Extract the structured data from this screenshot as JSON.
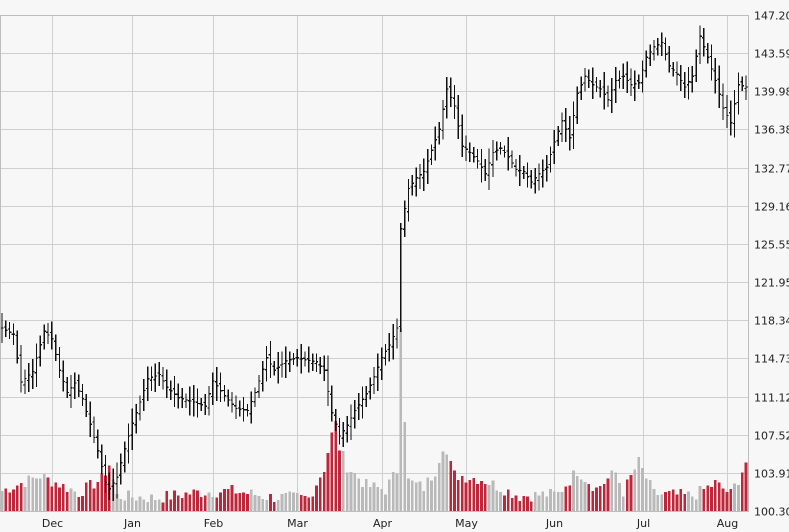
{
  "chart_data": {
    "type": "candlestick-with-volume",
    "title": "",
    "ylim": [
      100.3,
      147.2
    ],
    "y_ticks": [
      "147.20",
      "143.59",
      "139.98",
      "136.38",
      "132.77",
      "129.16",
      "125.55",
      "121.95",
      "118.34",
      "114.73",
      "111.12",
      "107.52",
      "103.91",
      "100.30"
    ],
    "x_ticks": [
      "Dec",
      "Jan",
      "Feb",
      "Mar",
      "Apr",
      "May",
      "Jun",
      "Jul",
      "Aug"
    ],
    "x_tick_index": [
      13,
      34,
      55,
      77,
      99,
      121,
      144,
      167,
      189
    ],
    "n_sessions": 195,
    "price_anchors": [
      [
        0,
        117.6
      ],
      [
        3,
        117.0
      ],
      [
        5,
        112.5
      ],
      [
        8,
        113.5
      ],
      [
        11,
        117.3
      ],
      [
        13,
        116.6
      ],
      [
        15,
        113.6
      ],
      [
        17,
        111.5
      ],
      [
        19,
        112.4
      ],
      [
        21,
        110.9
      ],
      [
        23,
        108.5
      ],
      [
        25,
        106.0
      ],
      [
        27,
        103.0
      ],
      [
        28,
        102.4
      ],
      [
        30,
        103.5
      ],
      [
        32,
        106.2
      ],
      [
        34,
        108.6
      ],
      [
        36,
        110.6
      ],
      [
        38,
        112.8
      ],
      [
        41,
        113.2
      ],
      [
        43,
        112.0
      ],
      [
        46,
        111.0
      ],
      [
        50,
        110.6
      ],
      [
        53,
        110.2
      ],
      [
        55,
        112.6
      ],
      [
        58,
        111.2
      ],
      [
        61,
        110.0
      ],
      [
        64,
        109.8
      ],
      [
        66,
        111.5
      ],
      [
        69,
        114.8
      ],
      [
        71,
        113.6
      ],
      [
        74,
        114.5
      ],
      [
        77,
        114.8
      ],
      [
        79,
        114.6
      ],
      [
        82,
        114.4
      ],
      [
        84,
        113.6
      ],
      [
        86,
        109.6
      ],
      [
        88,
        107.4
      ],
      [
        90,
        108.4
      ],
      [
        92,
        109.8
      ],
      [
        95,
        111.4
      ],
      [
        97,
        113.0
      ],
      [
        99,
        114.8
      ],
      [
        101,
        116.0
      ],
      [
        103,
        117.6
      ],
      [
        104,
        127.0
      ],
      [
        106,
        130.8
      ],
      [
        108,
        131.8
      ],
      [
        110,
        132.4
      ],
      [
        112,
        134.4
      ],
      [
        114,
        136.4
      ],
      [
        116,
        140.2
      ],
      [
        118,
        138.6
      ],
      [
        120,
        134.8
      ],
      [
        122,
        134.2
      ],
      [
        124,
        133.4
      ],
      [
        126,
        132.2
      ],
      [
        128,
        134.2
      ],
      [
        130,
        134.6
      ],
      [
        132,
        133.8
      ],
      [
        134,
        132.6
      ],
      [
        136,
        132.4
      ],
      [
        138,
        131.4
      ],
      [
        140,
        132.2
      ],
      [
        142,
        132.8
      ],
      [
        144,
        135.2
      ],
      [
        146,
        137.2
      ],
      [
        148,
        135.6
      ],
      [
        150,
        139.8
      ],
      [
        152,
        141.4
      ],
      [
        154,
        140.6
      ],
      [
        156,
        140.2
      ],
      [
        158,
        139.2
      ],
      [
        160,
        141.0
      ],
      [
        162,
        141.4
      ],
      [
        164,
        140.6
      ],
      [
        166,
        140.8
      ],
      [
        168,
        143.2
      ],
      [
        170,
        144.2
      ],
      [
        172,
        144.6
      ],
      [
        174,
        142.4
      ],
      [
        176,
        141.6
      ],
      [
        178,
        140.4
      ],
      [
        180,
        141.4
      ],
      [
        182,
        145.2
      ],
      [
        184,
        143.2
      ],
      [
        186,
        141.0
      ],
      [
        188,
        138.4
      ],
      [
        190,
        137.0
      ],
      [
        192,
        140.6
      ],
      [
        194,
        140.4
      ]
    ],
    "volume_anchors": [
      [
        0,
        102.1
      ],
      [
        10,
        103.5
      ],
      [
        20,
        101.9
      ],
      [
        26,
        103.2
      ],
      [
        28,
        104.6
      ],
      [
        30,
        101.6
      ],
      [
        40,
        101.4
      ],
      [
        50,
        101.9
      ],
      [
        60,
        102.1
      ],
      [
        70,
        101.5
      ],
      [
        80,
        101.4
      ],
      [
        84,
        104.2
      ],
      [
        86,
        107.4
      ],
      [
        87,
        108.4
      ],
      [
        88,
        106.2
      ],
      [
        90,
        104.4
      ],
      [
        95,
        102.6
      ],
      [
        100,
        102.2
      ],
      [
        103,
        104.0
      ],
      [
        104,
        118.0
      ],
      [
        105,
        109.0
      ],
      [
        106,
        103.0
      ],
      [
        110,
        102.4
      ],
      [
        113,
        104.0
      ],
      [
        115,
        106.4
      ],
      [
        118,
        103.6
      ],
      [
        125,
        103.2
      ],
      [
        135,
        101.6
      ],
      [
        145,
        101.8
      ],
      [
        150,
        104.0
      ],
      [
        155,
        102.3
      ],
      [
        160,
        103.8
      ],
      [
        162,
        102.0
      ],
      [
        166,
        104.8
      ],
      [
        170,
        101.8
      ],
      [
        180,
        101.6
      ],
      [
        186,
        102.8
      ],
      [
        190,
        101.8
      ],
      [
        192,
        103.2
      ],
      [
        194,
        104.8
      ]
    ]
  }
}
